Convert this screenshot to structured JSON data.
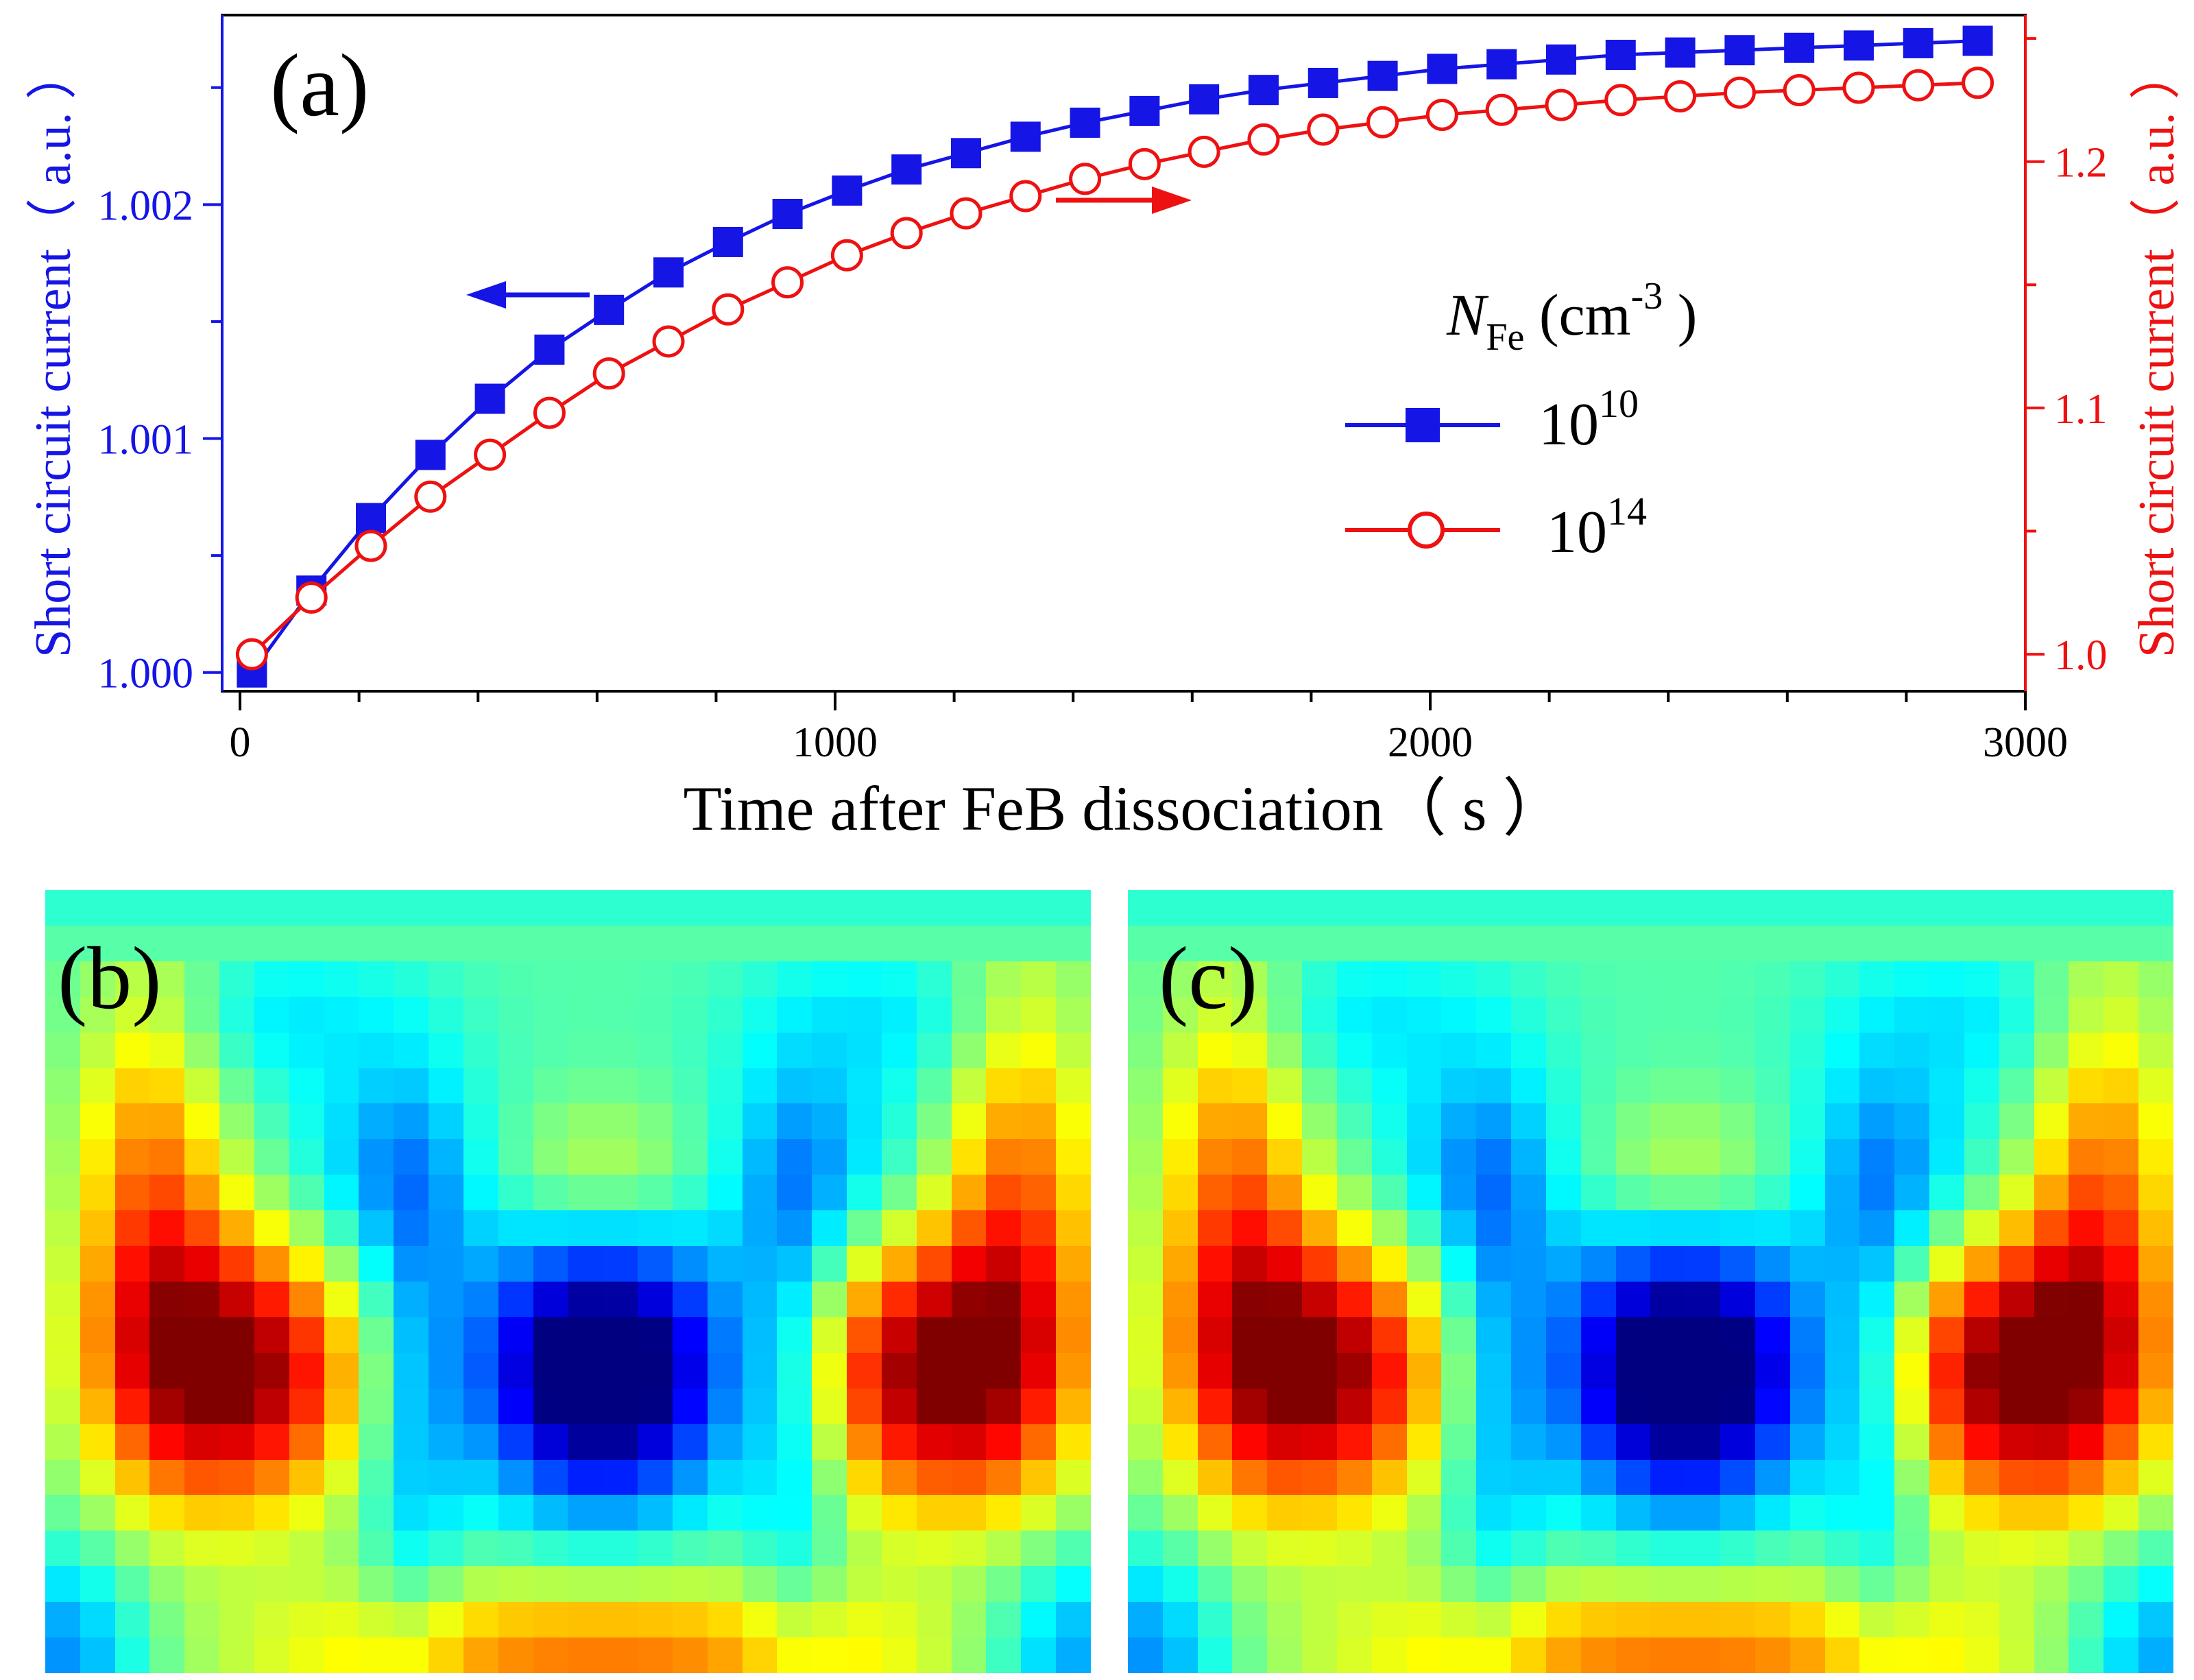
{
  "panel_a": {
    "label": "(a)",
    "xlabel": "Time after FeB dissociation（ s ）",
    "ylabel_left": "Short circuit current（ a.u. ）",
    "ylabel_right": "Short circuit current（ a.u. ）",
    "x_ticks": [
      "0",
      "1000",
      "2000",
      "3000"
    ],
    "y_left_ticks": [
      "1.000",
      "1.001",
      "1.002"
    ],
    "y_right_ticks": [
      "1.0",
      "1.1",
      "1.2"
    ],
    "legend": {
      "title_main": "N",
      "title_sub": "Fe",
      "title_unit": " (cm",
      "title_exp": "-3",
      "title_close": " )",
      "items": [
        {
          "base": "10",
          "exp": "10"
        },
        {
          "base": "10",
          "exp": "14"
        }
      ]
    }
  },
  "panel_b": {
    "label": "(b)"
  },
  "panel_c": {
    "label": "(c)"
  },
  "colors": {
    "series_blue": "#1515e6",
    "series_red": "#ee1111",
    "axis": "#000000",
    "left_axis": "#1515e6",
    "right_axis": "#ee1111"
  },
  "chart_data": [
    {
      "type": "line",
      "title": "(a)",
      "xlabel": "Time after FeB dissociation (s)",
      "xlim": [
        -30,
        3000
      ],
      "series": [
        {
          "name": "10^10",
          "axis": "left",
          "marker": "filled-square",
          "color": "#1515e6",
          "ylim": [
            0.99992,
            1.00281
          ],
          "x": [
            20,
            120,
            220,
            320,
            420,
            520,
            620,
            720,
            820,
            920,
            1020,
            1120,
            1220,
            1320,
            1420,
            1520,
            1620,
            1720,
            1820,
            1920,
            2020,
            2120,
            2220,
            2320,
            2420,
            2520,
            2620,
            2720,
            2820,
            2920
          ],
          "values": [
            1.0,
            1.00035,
            1.00066,
            1.00093,
            1.00117,
            1.00138,
            1.00155,
            1.00171,
            1.00184,
            1.00196,
            1.00206,
            1.00215,
            1.00222,
            1.00229,
            1.00235,
            1.0024,
            1.00245,
            1.00249,
            1.00252,
            1.00255,
            1.00258,
            1.0026,
            1.00262,
            1.00264,
            1.00265,
            1.00266,
            1.00267,
            1.00268,
            1.00269,
            1.0027
          ]
        },
        {
          "name": "10^14",
          "axis": "right",
          "marker": "open-circle",
          "color": "#ee1111",
          "ylim": [
            0.985,
            1.2595
          ],
          "x": [
            20,
            120,
            220,
            320,
            420,
            520,
            620,
            720,
            820,
            920,
            1020,
            1120,
            1220,
            1320,
            1420,
            1520,
            1620,
            1720,
            1820,
            1920,
            2020,
            2120,
            2220,
            2320,
            2420,
            2520,
            2620,
            2720,
            2820,
            2920
          ],
          "values": [
            1.0,
            1.023,
            1.044,
            1.064,
            1.081,
            1.098,
            1.114,
            1.127,
            1.14,
            1.151,
            1.162,
            1.171,
            1.179,
            1.186,
            1.193,
            1.199,
            1.204,
            1.209,
            1.213,
            1.216,
            1.219,
            1.221,
            1.223,
            1.225,
            1.2265,
            1.228,
            1.229,
            1.23,
            1.231,
            1.232
          ]
        }
      ]
    },
    {
      "type": "heatmap",
      "title": "(b)",
      "rows": 22,
      "cols": 30,
      "colormap": "jet",
      "description_values": "normalized field 0 (blue) to 1 (dark red); lobes at columns 5 and 25 (red) and 15 (blue) around row 13"
    },
    {
      "type": "heatmap",
      "title": "(c)",
      "rows": 22,
      "cols": 30,
      "colormap": "jet"
    }
  ]
}
